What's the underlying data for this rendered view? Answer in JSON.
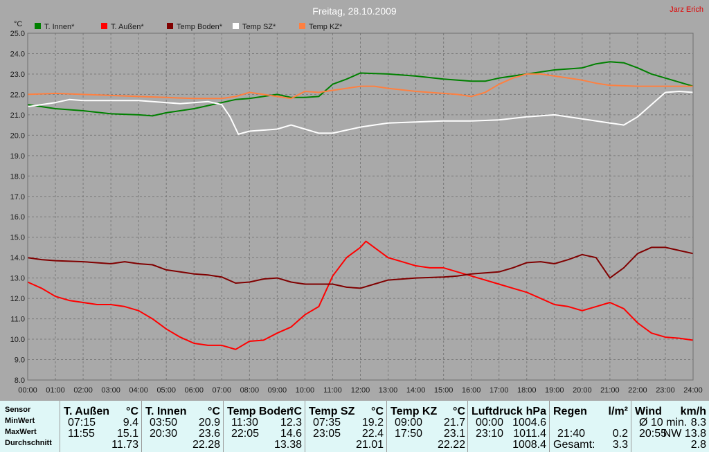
{
  "title": "Freitag, 28.10.2009",
  "author": "Jarz Erich",
  "colors": {
    "background": "#a9a9a9",
    "plot_bg": "#a9a9a9",
    "grid": "#7f7f7f",
    "title": "#ffffff",
    "author": "#e00000",
    "axis_text": "#1a1a1a",
    "stats_bg": "#dff7f7"
  },
  "chart_data": {
    "type": "line",
    "ylabel": "°C",
    "ylim": [
      8.0,
      25.0
    ],
    "yticks": [
      "8.0",
      "9.0",
      "10.0",
      "11.0",
      "12.0",
      "13.0",
      "14.0",
      "15.0",
      "16.0",
      "17.0",
      "18.0",
      "19.0",
      "20.0",
      "21.0",
      "22.0",
      "23.0",
      "24.0",
      "25.0"
    ],
    "xlim": [
      0,
      24
    ],
    "xticks": [
      "00:00",
      "01:00",
      "02:00",
      "03:00",
      "04:00",
      "05:00",
      "06:00",
      "07:00",
      "08:00",
      "09:00",
      "10:00",
      "11:00",
      "12:00",
      "13:00",
      "14:00",
      "15:00",
      "16:00",
      "17:00",
      "18:00",
      "19:00",
      "20:00",
      "21:00",
      "22:00",
      "23:00",
      "24:00"
    ],
    "grid": true,
    "legend_position": "top",
    "series": [
      {
        "name": "T. Innen*",
        "color": "#008000",
        "x": [
          0,
          1,
          2,
          3,
          4,
          4.5,
          5,
          6,
          7,
          7.5,
          8,
          9,
          9.5,
          10,
          10.5,
          11,
          11.5,
          12,
          13,
          14,
          15,
          15.5,
          16,
          16.5,
          17,
          18,
          19,
          20,
          20.5,
          21,
          21.5,
          22,
          22.5,
          23,
          23.5,
          24
        ],
        "y": [
          21.5,
          21.3,
          21.2,
          21.05,
          21.0,
          20.95,
          21.1,
          21.3,
          21.6,
          21.75,
          21.8,
          22.0,
          21.85,
          21.85,
          21.9,
          22.5,
          22.75,
          23.05,
          23.0,
          22.9,
          22.75,
          22.7,
          22.65,
          22.65,
          22.8,
          23.0,
          23.2,
          23.3,
          23.5,
          23.6,
          23.55,
          23.3,
          23.0,
          22.8,
          22.6,
          22.4
        ]
      },
      {
        "name": "T. Außen*",
        "color": "#ff0000",
        "x": [
          0,
          0.5,
          1,
          1.5,
          2,
          2.5,
          3,
          3.5,
          4,
          4.5,
          5,
          5.5,
          6,
          6.5,
          7,
          7.25,
          7.5,
          8,
          8.5,
          9,
          9.5,
          10,
          10.5,
          11,
          11.5,
          12,
          12.2,
          12.5,
          13,
          13.5,
          14,
          14.5,
          15,
          15.5,
          16,
          16.5,
          17,
          17.5,
          18,
          18.5,
          19,
          19.5,
          20,
          20.5,
          21,
          21.5,
          22,
          22.5,
          23,
          23.5,
          24
        ],
        "y": [
          12.8,
          12.5,
          12.1,
          11.9,
          11.8,
          11.7,
          11.7,
          11.6,
          11.4,
          11.0,
          10.5,
          10.1,
          9.8,
          9.7,
          9.7,
          9.6,
          9.5,
          9.9,
          9.95,
          10.3,
          10.6,
          11.2,
          11.6,
          13.1,
          14.0,
          14.5,
          14.8,
          14.5,
          14.0,
          13.8,
          13.6,
          13.5,
          13.5,
          13.3,
          13.1,
          12.9,
          12.7,
          12.5,
          12.3,
          12.0,
          11.7,
          11.6,
          11.4,
          11.6,
          11.8,
          11.5,
          10.8,
          10.3,
          10.1,
          10.05,
          9.95
        ]
      },
      {
        "name": "Temp Boden*",
        "color": "#800000",
        "x": [
          0,
          0.5,
          1,
          2,
          3,
          3.5,
          4,
          4.5,
          5,
          5.5,
          6,
          6.5,
          7,
          7.5,
          8,
          8.5,
          9,
          9.5,
          10,
          11,
          11.5,
          12,
          12.5,
          13,
          14,
          15,
          15.5,
          16,
          17,
          17.5,
          18,
          18.5,
          19,
          19.5,
          20,
          20.5,
          21,
          21.5,
          22,
          22.5,
          23,
          23.5,
          24
        ],
        "y": [
          14.0,
          13.9,
          13.85,
          13.8,
          13.7,
          13.8,
          13.7,
          13.65,
          13.4,
          13.3,
          13.2,
          13.15,
          13.05,
          12.75,
          12.8,
          12.95,
          13.0,
          12.8,
          12.7,
          12.7,
          12.55,
          12.5,
          12.7,
          12.9,
          13.0,
          13.05,
          13.1,
          13.2,
          13.3,
          13.5,
          13.75,
          13.8,
          13.7,
          13.9,
          14.15,
          14.0,
          13.0,
          13.5,
          14.2,
          14.5,
          14.5,
          14.35,
          14.2
        ]
      },
      {
        "name": "Temp SZ*",
        "color": "#ffffff",
        "x": [
          0,
          0.5,
          1,
          1.5,
          2,
          2.5,
          3,
          4,
          5,
          5.5,
          6,
          6.5,
          7,
          7.3,
          7.6,
          8,
          9,
          9.5,
          10,
          10.5,
          11,
          11.5,
          12,
          12.5,
          13,
          14,
          15,
          16,
          17,
          18,
          19,
          20,
          20.5,
          21,
          21.5,
          22,
          22.5,
          23,
          23.5,
          24
        ],
        "y": [
          21.4,
          21.5,
          21.6,
          21.75,
          21.7,
          21.7,
          21.7,
          21.7,
          21.6,
          21.55,
          21.6,
          21.65,
          21.5,
          20.9,
          20.05,
          20.2,
          20.3,
          20.5,
          20.3,
          20.1,
          20.1,
          20.25,
          20.4,
          20.5,
          20.6,
          20.65,
          20.7,
          20.7,
          20.75,
          20.9,
          21.0,
          20.8,
          20.7,
          20.6,
          20.5,
          20.9,
          21.5,
          22.1,
          22.15,
          22.1
        ]
      },
      {
        "name": "Temp KZ*",
        "color": "#ff8040",
        "x": [
          0,
          1,
          2,
          3,
          4,
          5,
          6,
          7,
          7.5,
          8,
          8.5,
          9,
          9.5,
          10,
          10.5,
          11,
          11.5,
          12,
          12.5,
          13,
          14,
          15,
          15.5,
          16,
          16.5,
          17,
          17.5,
          18,
          18.5,
          19,
          19.5,
          20,
          20.5,
          21,
          22,
          23,
          24
        ],
        "y": [
          22.0,
          22.05,
          22.0,
          21.95,
          21.9,
          21.85,
          21.8,
          21.8,
          21.9,
          22.1,
          22.0,
          21.9,
          21.8,
          22.15,
          22.1,
          22.2,
          22.3,
          22.4,
          22.4,
          22.3,
          22.15,
          22.05,
          22.0,
          21.9,
          22.1,
          22.5,
          22.8,
          23.0,
          23.0,
          22.9,
          22.8,
          22.7,
          22.55,
          22.45,
          22.4,
          22.4,
          22.4
        ]
      }
    ]
  },
  "stats": {
    "col_sensor": {
      "header": "Sensor",
      "rows": [
        "MinWert",
        "MaxWert",
        "Durchschnitt"
      ]
    },
    "columns": [
      {
        "name": "T. Außen",
        "unit": "°C",
        "min_time": "07:15",
        "min_val": "9.4",
        "max_time": "11:55",
        "max_val": "15.1",
        "avg": "11.73"
      },
      {
        "name": "T. Innen",
        "unit": "°C",
        "min_time": "03:50",
        "min_val": "20.9",
        "max_time": "20:30",
        "max_val": "23.6",
        "avg": "22.28"
      },
      {
        "name": "Temp Boden",
        "unit": "°C",
        "min_time": "11:30",
        "min_val": "12.3",
        "max_time": "22:05",
        "max_val": "14.6",
        "avg": "13.38"
      },
      {
        "name": "Temp SZ",
        "unit": "°C",
        "min_time": "07:35",
        "min_val": "19.2",
        "max_time": "23:05",
        "max_val": "22.4",
        "avg": "21.01"
      },
      {
        "name": "Temp KZ",
        "unit": "°C",
        "min_time": "09:00",
        "min_val": "21.7",
        "max_time": "17:50",
        "max_val": "23.1",
        "avg": "22.22"
      },
      {
        "name": "Luftdruck",
        "unit": "hPa",
        "min_time": "00:00",
        "min_val": "1004.6",
        "max_time": "23:10",
        "max_val": "1011.4",
        "avg": "1008.4"
      },
      {
        "name": "Regen",
        "unit": "l/m²",
        "min_time": "",
        "min_val": "",
        "max_time": "21:40",
        "max_val": "0.2",
        "avg_label": "Gesamt:",
        "avg": "3.3"
      },
      {
        "name": "Wind",
        "unit": "km/h",
        "min_time": "Ø 10 min.",
        "min_val": "8.3",
        "max_time": "20:55",
        "max_val": "NW 13.8",
        "avg": "2.8"
      }
    ]
  }
}
